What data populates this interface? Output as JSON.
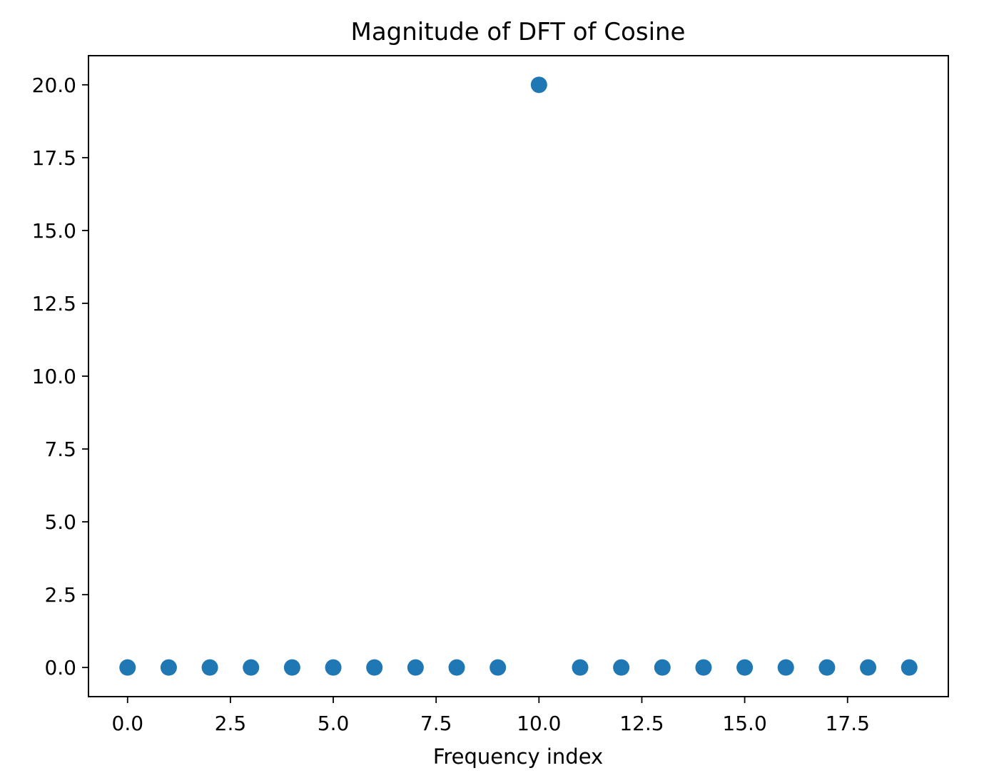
{
  "chart_data": {
    "type": "scatter",
    "title": "Magnitude of DFT of Cosine",
    "xlabel": "Frequency index",
    "ylabel": "",
    "xlim": [
      -0.95,
      19.95
    ],
    "ylim": [
      -1.0,
      21.0
    ],
    "xticks": [
      0.0,
      2.5,
      5.0,
      7.5,
      10.0,
      12.5,
      15.0,
      17.5
    ],
    "xtick_labels": [
      "0.0",
      "2.5",
      "5.0",
      "7.5",
      "10.0",
      "12.5",
      "15.0",
      "17.5"
    ],
    "yticks": [
      0.0,
      2.5,
      5.0,
      7.5,
      10.0,
      12.5,
      15.0,
      17.5,
      20.0
    ],
    "ytick_labels": [
      "0.0",
      "2.5",
      "5.0",
      "7.5",
      "10.0",
      "12.5",
      "15.0",
      "17.5",
      "20.0"
    ],
    "grid": false,
    "legend": "none",
    "marker_color": "#1f77b4",
    "series": [
      {
        "x": [
          0,
          1,
          2,
          3,
          4,
          5,
          6,
          7,
          8,
          9,
          10,
          11,
          12,
          13,
          14,
          15,
          16,
          17,
          18,
          19
        ],
        "y": [
          0,
          0,
          0,
          0,
          0,
          0,
          0,
          0,
          0,
          0,
          20,
          0,
          0,
          0,
          0,
          0,
          0,
          0,
          0,
          0
        ]
      }
    ]
  }
}
